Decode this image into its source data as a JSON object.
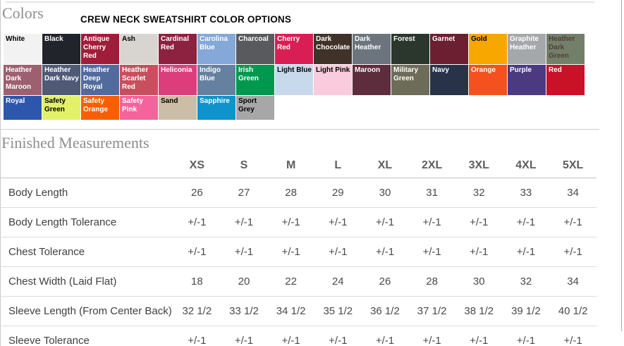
{
  "header": {
    "colors_heading": "Colors",
    "color_options_title": "CREW NECK SWEATSHIRT COLOR OPTIONS"
  },
  "swatch_rows": [
    [
      {
        "name": "White",
        "bg": "#f2f2f2",
        "fg": "#000000"
      },
      {
        "name": "Black",
        "bg": "#22242c",
        "fg": "#ffffff"
      },
      {
        "name": "Antique Cherry Red",
        "bg": "#a01d39",
        "fg": "#ffffff"
      },
      {
        "name": "Ash",
        "bg": "#d8d5d1",
        "fg": "#000000"
      },
      {
        "name": "Cardinal Red",
        "bg": "#8c2140",
        "fg": "#ffffff"
      },
      {
        "name": "Carolina Blue",
        "bg": "#84a8d8",
        "fg": "#ffffff"
      },
      {
        "name": "Charcoal",
        "bg": "#595a5e",
        "fg": "#ffffff"
      },
      {
        "name": "Cherry Red",
        "bg": "#d91e56",
        "fg": "#ffffff"
      },
      {
        "name": "Dark Chocolate",
        "bg": "#403229",
        "fg": "#ffffff"
      },
      {
        "name": "Dark Heather",
        "bg": "#6c747d",
        "fg": "#ffffff"
      },
      {
        "name": "Forest",
        "bg": "#2b372d",
        "fg": "#ffffff"
      },
      {
        "name": "Garnet",
        "bg": "#6b1f31",
        "fg": "#ffffff"
      },
      {
        "name": "Gold",
        "bg": "#f8a600",
        "fg": "#000000"
      },
      {
        "name": "Graphite Heather",
        "bg": "#a4a8ab",
        "fg": "#ffffff"
      },
      {
        "name": "Heather Dark Green",
        "bg": "#728069",
        "fg": "#543c3c"
      }
    ],
    [
      {
        "name": "Heather Dark Maroon",
        "bg": "#9d6070",
        "fg": "#ffffff"
      },
      {
        "name": "Heather Dark Navy",
        "bg": "#4e5a76",
        "fg": "#ffffff"
      },
      {
        "name": "Heather Deep Royal",
        "bg": "#526b9e",
        "fg": "#ffffff"
      },
      {
        "name": "Heather Scarlet Red",
        "bg": "#c84f5e",
        "fg": "#ffffff"
      },
      {
        "name": "Heliconia",
        "bg": "#de3d7c",
        "fg": "#ffffff"
      },
      {
        "name": "Indigo Blue",
        "bg": "#66809f",
        "fg": "#ffffff"
      },
      {
        "name": "Irish Green",
        "bg": "#00984e",
        "fg": "#ffffff"
      },
      {
        "name": "Light Blue",
        "bg": "#c8d9ec",
        "fg": "#000000"
      },
      {
        "name": "Light Pink",
        "bg": "#f9cbdc",
        "fg": "#000000"
      },
      {
        "name": "Maroon",
        "bg": "#5d2c3d",
        "fg": "#ffffff"
      },
      {
        "name": "Military Green",
        "bg": "#6c6c58",
        "fg": "#ffffff"
      },
      {
        "name": "Navy",
        "bg": "#28334a",
        "fg": "#ffffff"
      },
      {
        "name": "Orange",
        "bg": "#f4511e",
        "fg": "#ffffff"
      },
      {
        "name": "Purple",
        "bg": "#4b3a80",
        "fg": "#ffffff"
      },
      {
        "name": "Red",
        "bg": "#c91127",
        "fg": "#ffffff"
      }
    ],
    [
      {
        "name": "Royal",
        "bg": "#2d56ad",
        "fg": "#ffffff"
      },
      {
        "name": "Safety Green",
        "bg": "#e3f169",
        "fg": "#000000"
      },
      {
        "name": "Safety Orange",
        "bg": "#f95f02",
        "fg": "#ffffff"
      },
      {
        "name": "Safety Pink",
        "bg": "#f4639c",
        "fg": "#ffffff"
      },
      {
        "name": "Sand",
        "bg": "#ccbda6",
        "fg": "#000000"
      },
      {
        "name": "Sapphire",
        "bg": "#0f93cd",
        "fg": "#ffffff"
      },
      {
        "name": "Sport Grey",
        "bg": "#a7a7a7",
        "fg": "#000000"
      }
    ]
  ],
  "measurements": {
    "heading": "Finished Measurements",
    "size_columns": [
      "XS",
      "S",
      "M",
      "L",
      "XL",
      "2XL",
      "3XL",
      "4XL",
      "5XL"
    ],
    "rows": [
      {
        "label": "Body Length",
        "values": [
          "26",
          "27",
          "28",
          "29",
          "30",
          "31",
          "32",
          "33",
          "34"
        ]
      },
      {
        "label": "Body Length Tolerance",
        "values": [
          "+/-1",
          "+/-1",
          "+/-1",
          "+/-1",
          "+/-1",
          "+/-1",
          "+/-1",
          "+/-1",
          "+/-1"
        ]
      },
      {
        "label": "Chest Tolerance",
        "values": [
          "+/-1",
          "+/-1",
          "+/-1",
          "+/-1",
          "+/-1",
          "+/-1",
          "+/-1",
          "+/-1",
          "+/-1"
        ]
      },
      {
        "label": "Chest Width (Laid Flat)",
        "values": [
          "18",
          "20",
          "22",
          "24",
          "26",
          "28",
          "30",
          "32",
          "34"
        ]
      },
      {
        "label": "Sleeve Length (From Center Back)",
        "values": [
          "32 1/2",
          "33 1/2",
          "34 1/2",
          "35 1/2",
          "36 1/2",
          "37 1/2",
          "38 1/2",
          "39 1/2",
          "40 1/2"
        ]
      },
      {
        "label": "Sleeve Tolerance",
        "values": [
          "+/-1",
          "+/-1",
          "+/-1",
          "+/-1",
          "+/-1",
          "+/-1",
          "+/-1",
          "+/-1",
          "+/-1"
        ]
      }
    ]
  }
}
